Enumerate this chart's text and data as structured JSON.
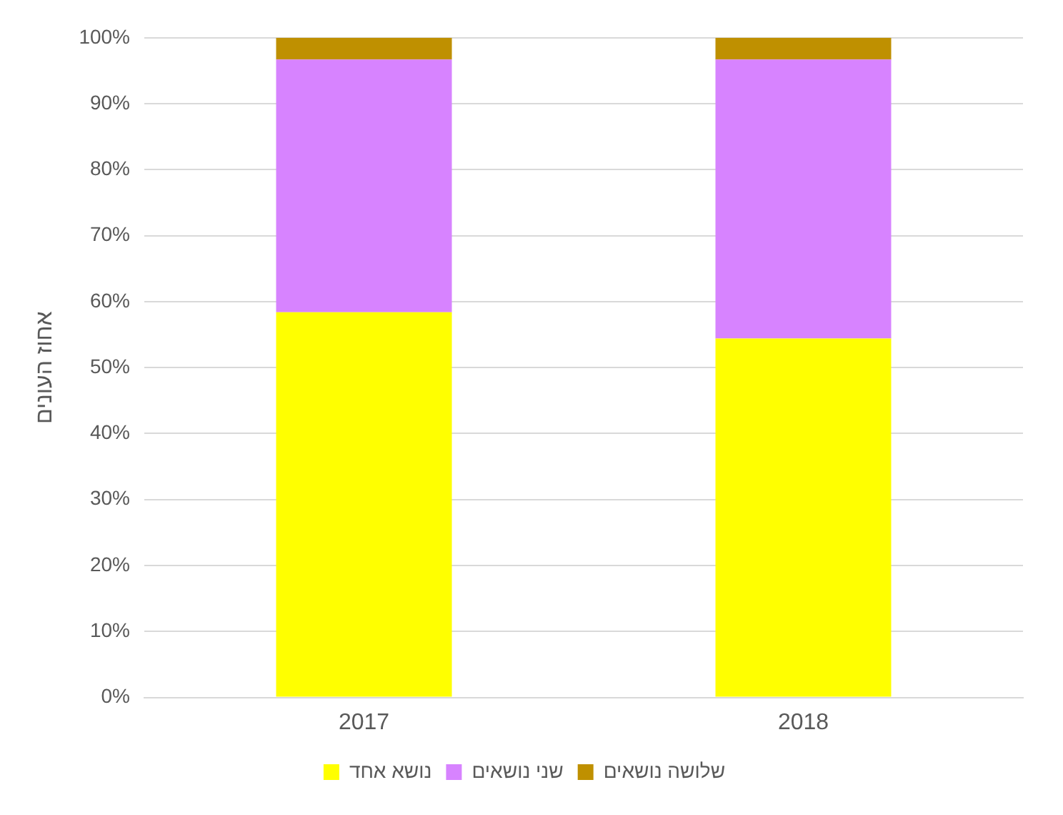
{
  "chart_data": {
    "type": "bar",
    "stacked": true,
    "ylabel": "אחוז העונים",
    "categories": [
      "2017",
      "2018"
    ],
    "series": [
      {
        "name": "נושא אחד",
        "color": "#ffff00",
        "values": [
          58.4,
          54.4
        ]
      },
      {
        "name": "שני נושאים",
        "color": "#d783ff",
        "values": [
          38.3,
          42.3
        ]
      },
      {
        "name": "שלושה נושאים",
        "color": "#bf9000",
        "values": [
          3.3,
          3.3
        ]
      }
    ],
    "ylim": [
      0,
      100
    ],
    "yticks": [
      {
        "value": 0,
        "label": "0%"
      },
      {
        "value": 10,
        "label": "10%"
      },
      {
        "value": 20,
        "label": "20%"
      },
      {
        "value": 30,
        "label": "30%"
      },
      {
        "value": 40,
        "label": "40%"
      },
      {
        "value": 50,
        "label": "50%"
      },
      {
        "value": 60,
        "label": "60%"
      },
      {
        "value": 70,
        "label": "70%"
      },
      {
        "value": 80,
        "label": "80%"
      },
      {
        "value": 90,
        "label": "90%"
      },
      {
        "value": 100,
        "label": "100%"
      }
    ],
    "grid": "y",
    "legend": "bottom"
  }
}
